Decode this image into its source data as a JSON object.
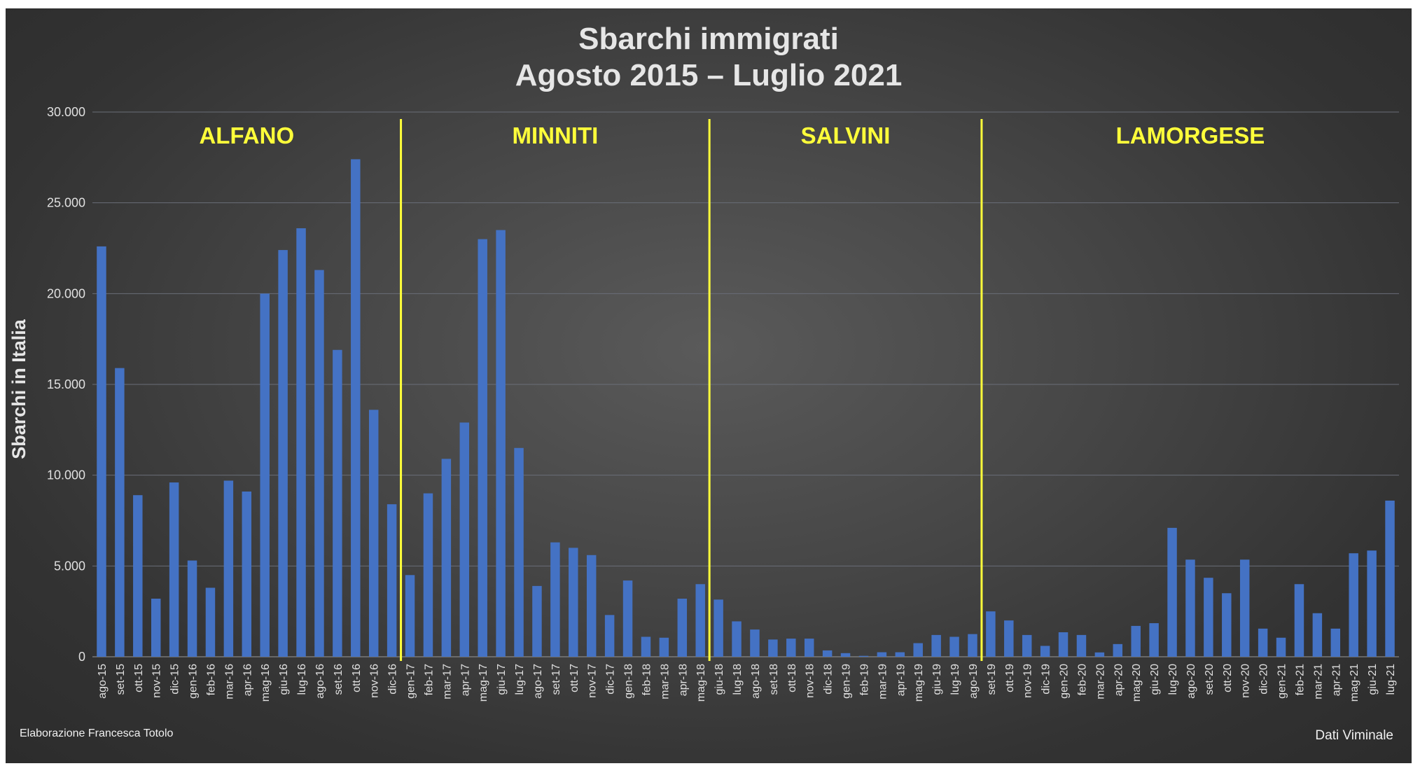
{
  "chart_data": {
    "type": "bar",
    "title_line1": "Sbarchi immigrati",
    "title_line2": "Agosto 2015 – Luglio 2021",
    "ylabel": "Sbarchi in Italia",
    "xlabel": "",
    "ylim": [
      0,
      30000
    ],
    "yticks": [
      "0",
      "5.000",
      "10.000",
      "15.000",
      "20.000",
      "25.000",
      "30.000"
    ],
    "grid": true,
    "bar_color": "#4472c4",
    "divider_color": "#ffff3a",
    "categories": [
      "ago-15",
      "set-15",
      "ott-15",
      "nov-15",
      "dic-15",
      "gen-16",
      "feb-16",
      "mar-16",
      "apr-16",
      "mag-16",
      "giu-16",
      "lug-16",
      "ago-16",
      "set-16",
      "ott-16",
      "nov-16",
      "dic-16",
      "gen-17",
      "feb-17",
      "mar-17",
      "apr-17",
      "mag-17",
      "giu-17",
      "lug-17",
      "ago-17",
      "set-17",
      "ott-17",
      "nov-17",
      "dic-17",
      "gen-18",
      "feb-18",
      "mar-18",
      "apr-18",
      "mag-18",
      "giu-18",
      "lug-18",
      "ago-18",
      "set-18",
      "ott-18",
      "nov-18",
      "dic-18",
      "gen-19",
      "feb-19",
      "mar-19",
      "apr-19",
      "mag-19",
      "giu-19",
      "lug-19",
      "ago-19",
      "set-19",
      "ott-19",
      "nov-19",
      "dic-19",
      "gen-20",
      "feb-20",
      "mar-20",
      "apr-20",
      "mag-20",
      "giu-20",
      "lug-20",
      "ago-20",
      "set-20",
      "ott-20",
      "nov-20",
      "dic-20",
      "gen-21",
      "feb-21",
      "mar-21",
      "apr-21",
      "mag-21",
      "giu-21",
      "lug-21"
    ],
    "values": [
      22600,
      15900,
      8900,
      3200,
      9600,
      5300,
      3800,
      9700,
      9100,
      20000,
      22400,
      23600,
      21300,
      16900,
      27400,
      13600,
      8400,
      4500,
      9000,
      10900,
      12900,
      23000,
      23500,
      11500,
      3900,
      6300,
      6000,
      5600,
      2300,
      4200,
      1100,
      1050,
      3200,
      4000,
      3150,
      1950,
      1500,
      950,
      1000,
      1000,
      350,
      200,
      50,
      250,
      250,
      750,
      1200,
      1100,
      1250,
      2500,
      2000,
      1200,
      600,
      1350,
      1200,
      240,
      700,
      1700,
      1850,
      7100,
      5350,
      4350,
      3500,
      5350,
      1550,
      1050,
      4000,
      2400,
      1550,
      5700,
      5850,
      8600
    ],
    "eras": [
      {
        "label": "ALFANO",
        "start": 0,
        "end": 16
      },
      {
        "label": "MINNITI",
        "start": 17,
        "end": 33
      },
      {
        "label": "SALVINI",
        "start": 34,
        "end": 48
      },
      {
        "label": "LAMORGESE",
        "start": 49,
        "end": 71
      }
    ],
    "footnote_left": "Elaborazione Francesca Totolo",
    "footnote_right": "Dati Viminale"
  }
}
